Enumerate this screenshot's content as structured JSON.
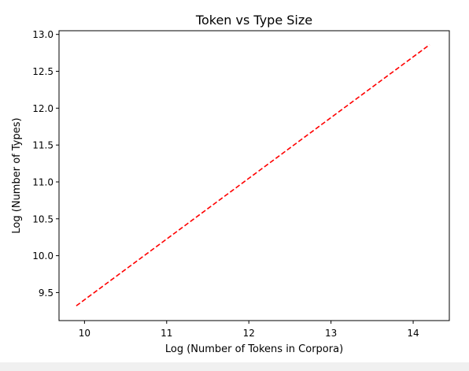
{
  "chart_data": {
    "type": "line",
    "title": "Token vs Type Size",
    "xlabel": "Log (Number of Tokens in Corpora)",
    "ylabel": "Log (Number of Types)",
    "xlim": [
      9.69,
      14.44
    ],
    "ylim": [
      9.12,
      13.05
    ],
    "xticks": [
      10,
      11,
      12,
      13,
      14
    ],
    "yticks": [
      9.5,
      10.0,
      10.5,
      11.0,
      11.5,
      12.0,
      12.5,
      13.0
    ],
    "xtick_labels": [
      "10",
      "11",
      "12",
      "13",
      "14"
    ],
    "ytick_labels": [
      "9.5",
      "10.0",
      "10.5",
      "11.0",
      "11.5",
      "12.0",
      "12.5",
      "13.0"
    ],
    "grid": false,
    "legend": "none",
    "series": [
      {
        "x": [
          9.9,
          14.2
        ],
        "y": [
          9.32,
          12.86
        ],
        "color": "#ff0000",
        "line_style": "dashed"
      }
    ]
  }
}
